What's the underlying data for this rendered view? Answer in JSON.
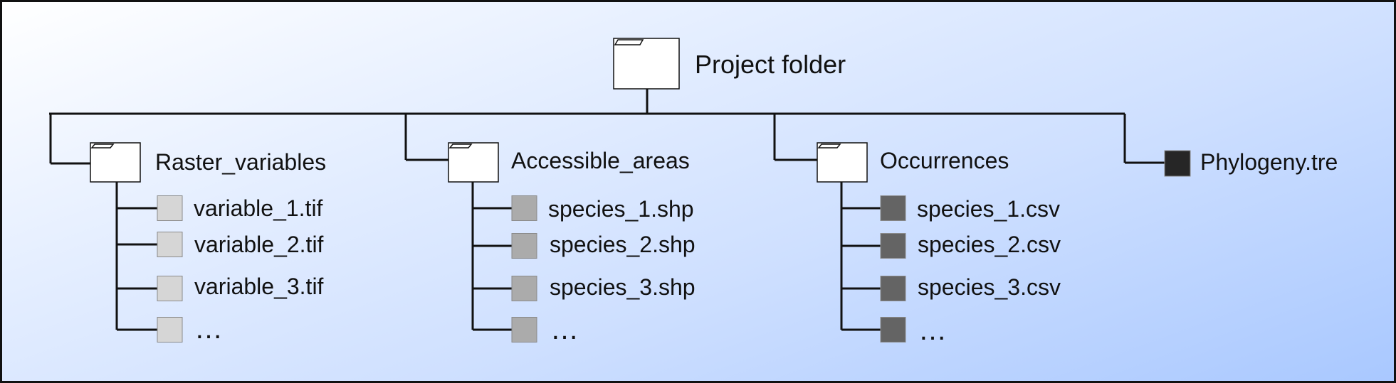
{
  "root": {
    "label": "Project folder"
  },
  "folders": [
    {
      "label": "Raster_variables",
      "file_color": "#d6d6d6",
      "files": [
        "variable_1.tif",
        "variable_2.tif",
        "variable_3.tif",
        "…"
      ]
    },
    {
      "label": "Accessible_areas",
      "file_color": "#ababab",
      "files": [
        "species_1.shp",
        "species_2.shp",
        "species_3.shp",
        "…"
      ]
    },
    {
      "label": "Occurrences",
      "file_color": "#646464",
      "files": [
        "species_1.csv",
        "species_2.csv",
        "species_3.csv",
        "…"
      ]
    }
  ],
  "standalone_file": {
    "label": "Phylogeny.tre",
    "color": "#262626"
  }
}
